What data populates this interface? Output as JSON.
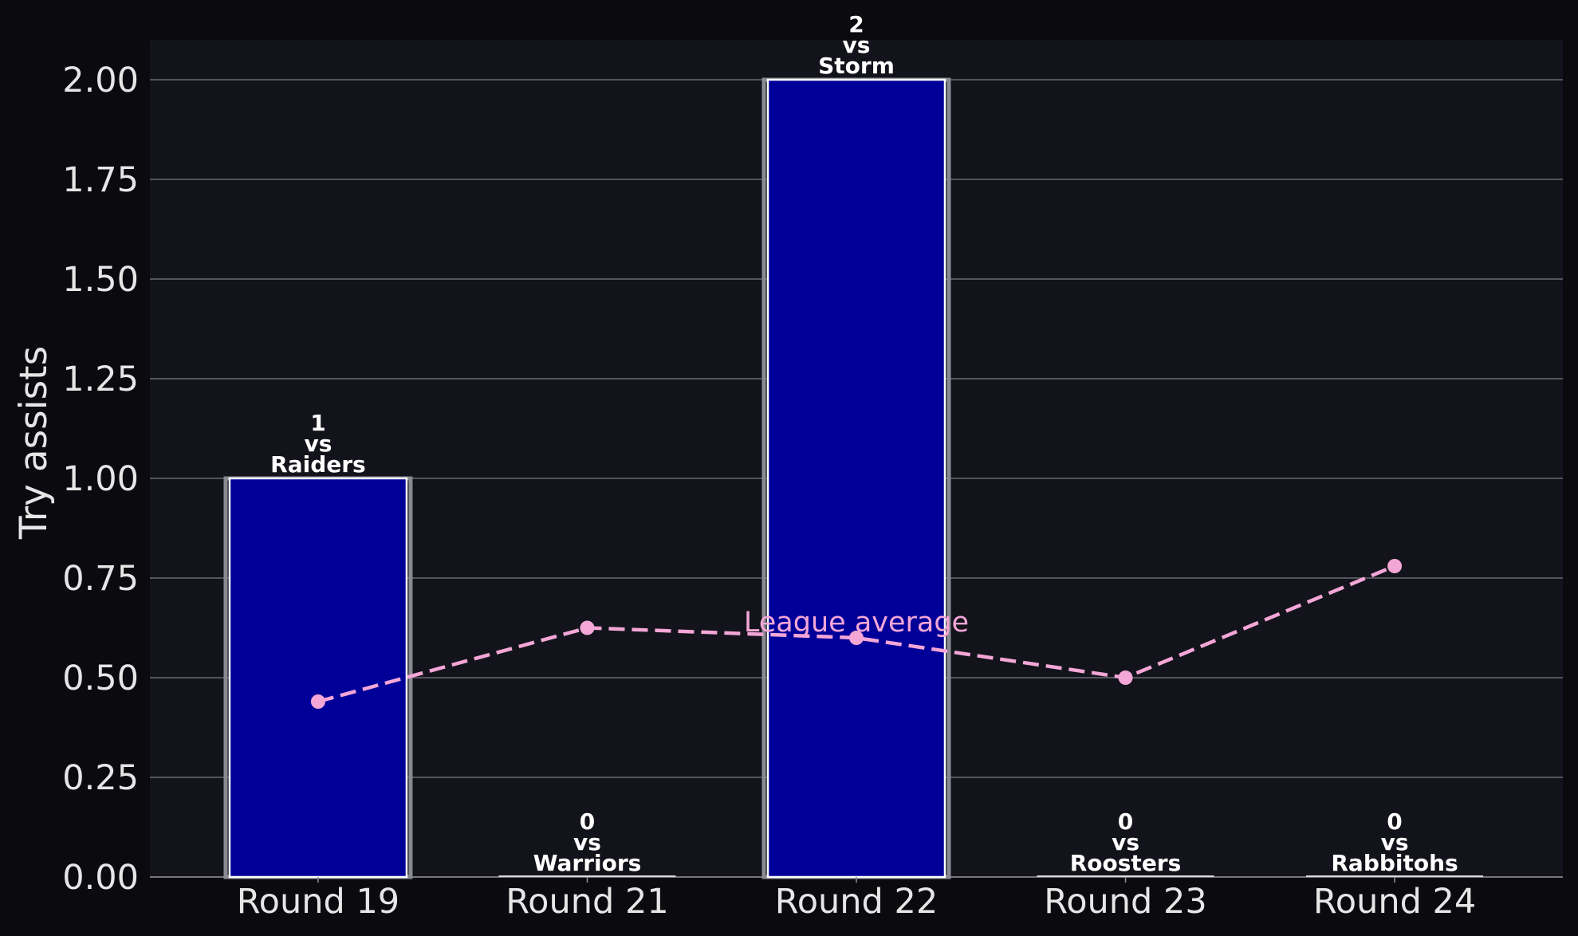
{
  "chart_data": {
    "type": "bar",
    "ylabel": "Try assists",
    "ylim": [
      0,
      2.1
    ],
    "yticks": [
      "0.00",
      "0.25",
      "0.50",
      "0.75",
      "1.00",
      "1.25",
      "1.50",
      "1.75",
      "2.00"
    ],
    "grid": true,
    "categories": [
      "Round 19",
      "Round 21",
      "Round 22",
      "Round 23",
      "Round 24"
    ],
    "series": [
      {
        "values": [
          1,
          0,
          2,
          0,
          0
        ],
        "bar_labels": [
          [
            "1",
            "vs",
            "Raiders"
          ],
          [
            "0",
            "vs",
            "Warriors"
          ],
          [
            "2",
            "vs",
            "Storm"
          ],
          [
            "0",
            "vs",
            "Roosters"
          ],
          [
            "0",
            "vs",
            "Rabbitohs"
          ]
        ],
        "color": "#000099"
      },
      {
        "name": "League average",
        "type": "line",
        "values": [
          0.44,
          0.625,
          0.6,
          0.5,
          0.78
        ],
        "color": "#f4a6d7",
        "style": "dashed"
      }
    ],
    "background": "#13141b",
    "page_background": "#0b0b0f"
  }
}
